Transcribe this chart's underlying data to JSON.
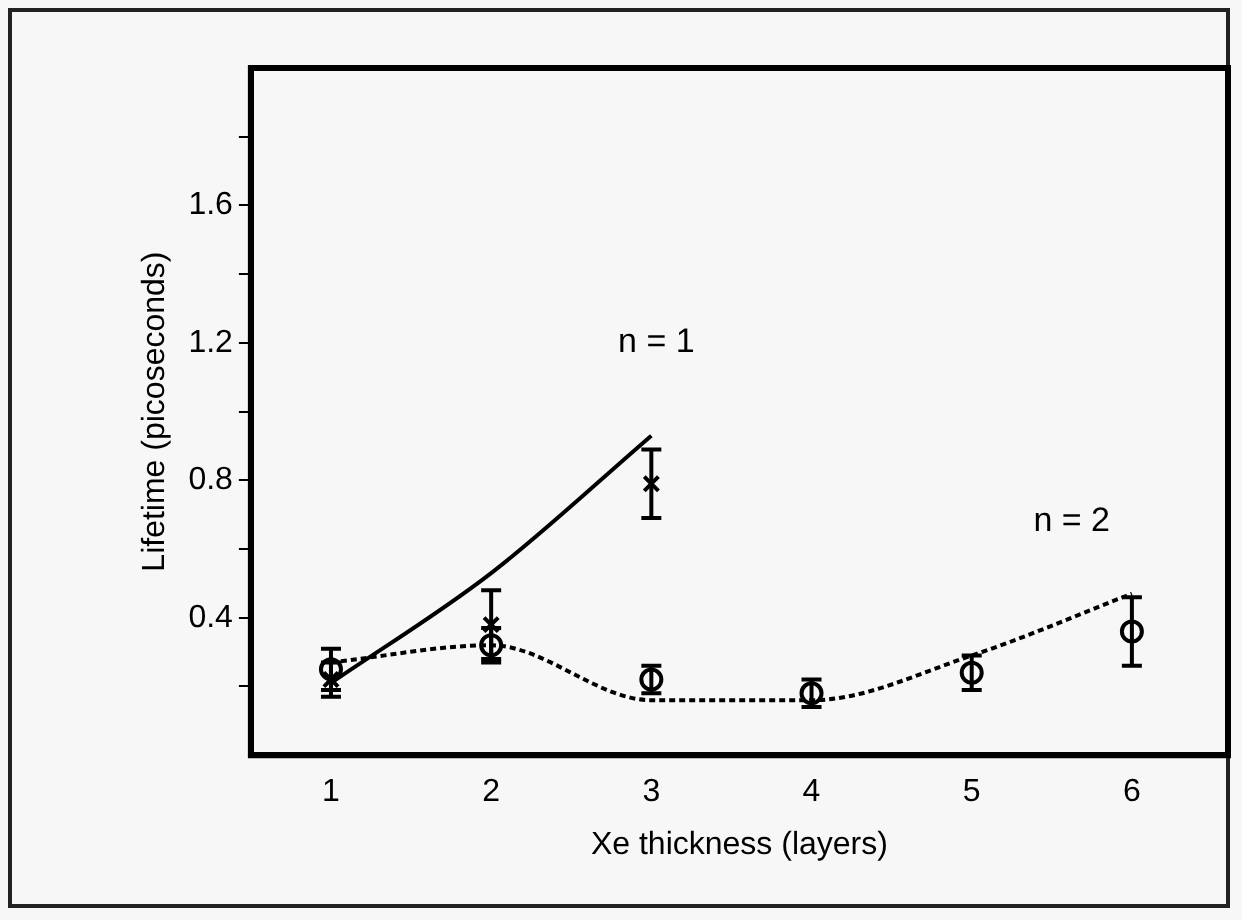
{
  "chart_data": {
    "type": "scatter",
    "xlabel": "Xe thickness (layers)",
    "ylabel": "Lifetime (picoseconds)",
    "xlim": [
      0.5,
      6.6
    ],
    "xticks": [
      1,
      2,
      3,
      4,
      5,
      6
    ],
    "ylim": [
      0,
      2
    ],
    "yticks": [
      {
        "value": 0.2,
        "label": null
      },
      0.4,
      {
        "value": 0.6,
        "label": null
      },
      0.8,
      {
        "value": 1.0,
        "label": null
      },
      1.2,
      {
        "value": 1.4,
        "label": null
      },
      1.6,
      {
        "value": 1.8,
        "label": null
      }
    ],
    "grid": false,
    "legend": false,
    "series": [
      {
        "color": "#000000",
        "marker": "cross",
        "x": [
          1,
          2,
          3
        ],
        "values": [
          0.22,
          0.38,
          0.79
        ],
        "errors": [
          0.05,
          0.1,
          0.1
        ]
      },
      {
        "color": "#000000",
        "marker": "circle",
        "x": [
          1,
          2,
          3,
          4,
          5,
          6
        ],
        "values": [
          0.25,
          0.32,
          0.22,
          0.18,
          0.24,
          0.36
        ],
        "errors": [
          0.06,
          0.05,
          0.04,
          0.04,
          0.05,
          0.1
        ]
      },
      {
        "type": "line",
        "color": "#000000",
        "marker": "none",
        "line_style": "solid",
        "x": [
          1,
          2,
          3
        ],
        "values": [
          0.21,
          0.53,
          0.93
        ]
      },
      {
        "type": "line",
        "color": "#000000",
        "marker": "none",
        "line_style": "dotted",
        "x": [
          1,
          2,
          3,
          4,
          5,
          6
        ],
        "values": [
          0.27,
          0.32,
          0.16,
          0.16,
          0.29,
          0.47
        ]
      }
    ],
    "annotations": [
      "n = 1",
      "n = 2"
    ]
  }
}
